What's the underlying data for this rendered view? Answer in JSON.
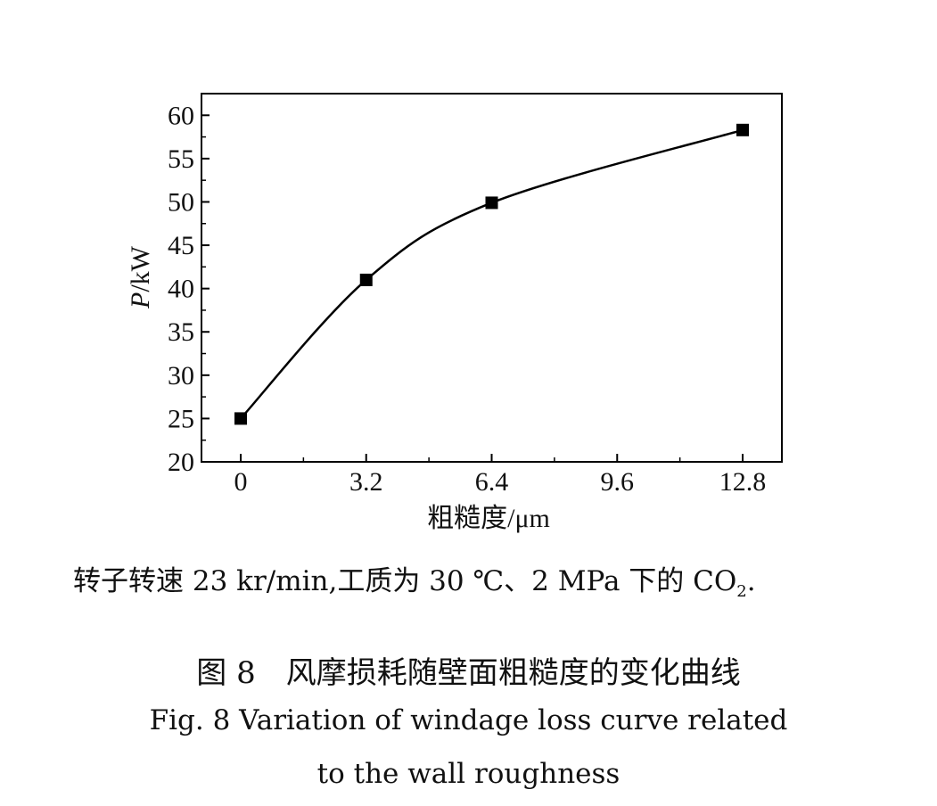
{
  "chart_data": {
    "type": "line",
    "x": [
      0,
      3.2,
      6.4,
      12.8
    ],
    "series": [
      {
        "values": [
          25,
          41,
          49.9,
          58.3
        ],
        "color": "#000000",
        "marker": "square",
        "smooth": true
      }
    ],
    "xlabel": "粗糙度/μm",
    "ylabel_italic": "P",
    "ylabel_rest": "/kW",
    "xlim": [
      -1,
      13.8
    ],
    "ylim": [
      20,
      62.5
    ],
    "xticks": [
      0,
      3.2,
      6.4,
      9.6,
      12.8
    ],
    "xtick_labels": [
      "0",
      "3.2",
      "6.4",
      "9.6",
      "12.8"
    ],
    "yticks": [
      20,
      25,
      30,
      35,
      40,
      45,
      50,
      55,
      60
    ],
    "ytick_labels": [
      "20",
      "25",
      "30",
      "35",
      "40",
      "45",
      "50",
      "55",
      "60"
    ],
    "grid": false
  },
  "note": {
    "text": "转子转速 23 kr/min,工质为 30 ℃、2 MPa 下的 CO",
    "subscript": "2",
    "suffix": "."
  },
  "caption": {
    "cn": "图 8　风摩损耗随壁面粗糙度的变化曲线",
    "en_line1": "Fig. 8  Variation of windage loss curve related",
    "en_line2": "to the wall roughness"
  }
}
